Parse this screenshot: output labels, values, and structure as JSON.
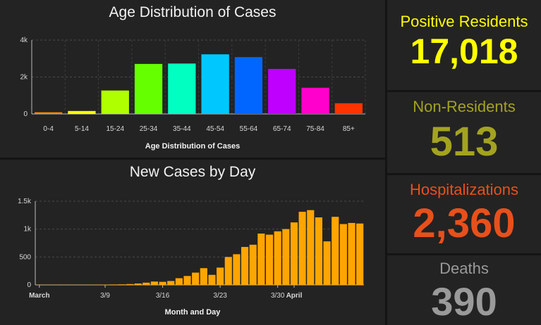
{
  "chart_data": [
    {
      "type": "bar",
      "title": "Age Distribution of Cases",
      "xlabel": "Age Distribution of Cases",
      "ylabel": "",
      "ylim": [
        0,
        4000
      ],
      "yticks": [
        {
          "value": 0,
          "label": "0"
        },
        {
          "value": 2000,
          "label": "2k"
        },
        {
          "value": 4000,
          "label": "4k"
        }
      ],
      "grid": true,
      "categories": [
        "0-4",
        "5-14",
        "15-24",
        "25-34",
        "35-44",
        "45-54",
        "55-64",
        "65-74",
        "75-84",
        "85+"
      ],
      "values": [
        90,
        160,
        1270,
        2710,
        2730,
        3230,
        3080,
        2440,
        1420,
        580
      ],
      "colors": [
        "#ff8c00",
        "#ffff00",
        "#b0ff00",
        "#66ff00",
        "#00ffc0",
        "#00c8ff",
        "#0066ff",
        "#bf00ff",
        "#ff00cc",
        "#ff3300"
      ]
    },
    {
      "type": "bar",
      "title": "New Cases by Day",
      "xlabel": "Month and Day",
      "ylabel": "",
      "ylim": [
        0,
        1500
      ],
      "yticks": [
        {
          "value": 0,
          "label": "0"
        },
        {
          "value": 500,
          "label": "500"
        },
        {
          "value": 1000,
          "label": "1k"
        },
        {
          "value": 1500,
          "label": "1.5k"
        }
      ],
      "grid": true,
      "color": "#ffa500",
      "x_start": "March 1",
      "xticks": [
        {
          "index": 0,
          "label": "March",
          "bold": true
        },
        {
          "index": 8,
          "label": "3/9",
          "bold": false
        },
        {
          "index": 15,
          "label": "3/16",
          "bold": false
        },
        {
          "index": 22,
          "label": "3/23",
          "bold": false
        },
        {
          "index": 29,
          "label": "3/30",
          "bold": false
        },
        {
          "index": 31,
          "label": "April",
          "bold": true
        }
      ],
      "values": [
        1,
        1,
        1,
        2,
        2,
        3,
        3,
        4,
        6,
        8,
        10,
        15,
        25,
        40,
        60,
        55,
        70,
        120,
        160,
        220,
        300,
        180,
        310,
        500,
        550,
        680,
        720,
        920,
        900,
        960,
        1000,
        1120,
        1310,
        1340,
        1210,
        780,
        1220,
        1090,
        1110,
        1100
      ]
    }
  ],
  "stats": {
    "positive": {
      "label": "Positive Residents",
      "value": "17,018",
      "label_color": "#ffff00",
      "value_color": "#ffff00"
    },
    "nonres": {
      "label": "Non-Residents",
      "value": "513",
      "label_color": "#a3a320",
      "value_color": "#a3a320"
    },
    "hosp": {
      "label": "Hospitalizations",
      "value": "2,360",
      "label_color": "#e8501a",
      "value_color": "#e8501a"
    },
    "deaths": {
      "label": "Deaths",
      "value": "390",
      "label_color": "#9a9a9a",
      "value_color": "#9a9a9a"
    }
  }
}
